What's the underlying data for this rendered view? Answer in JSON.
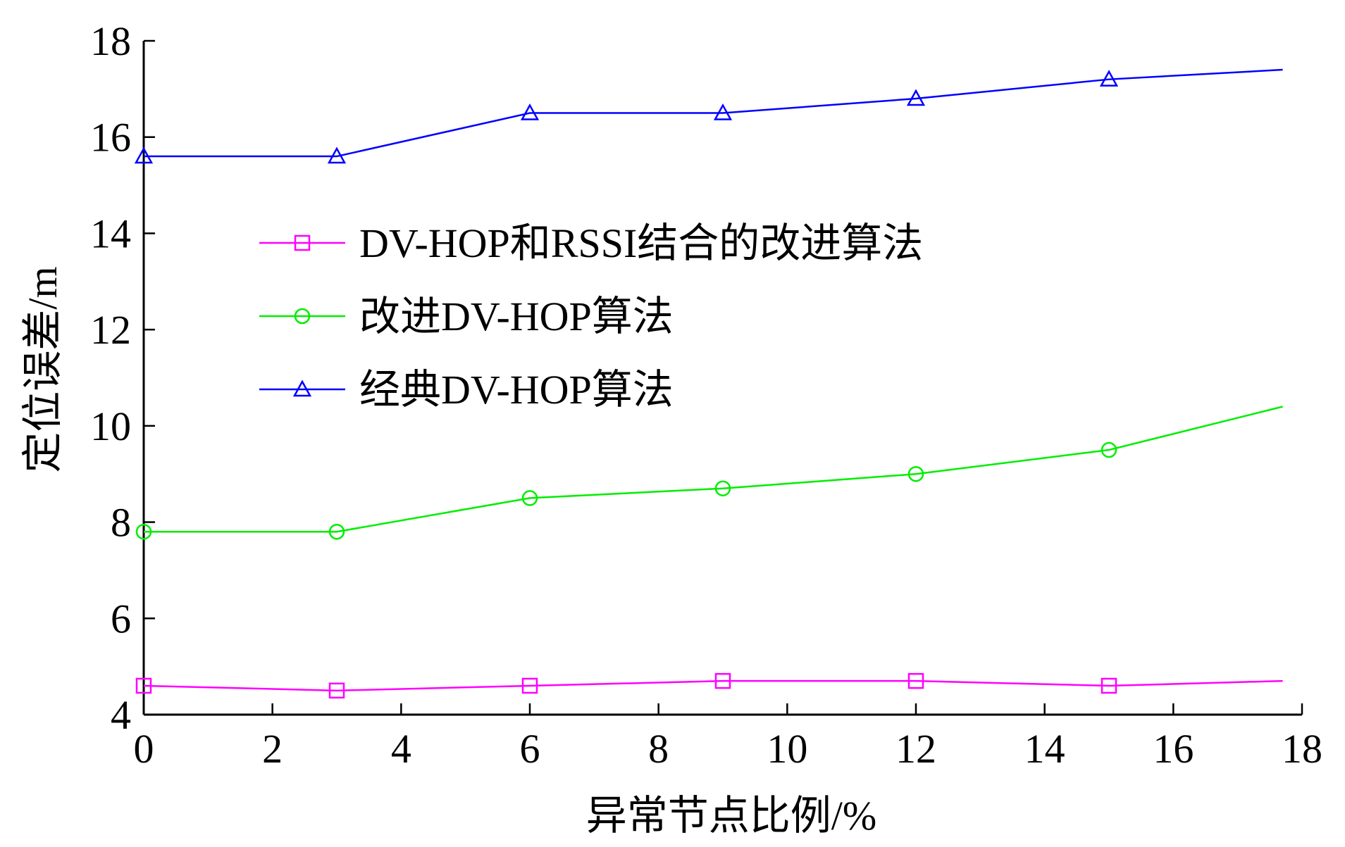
{
  "chart_data": {
    "type": "line",
    "title": "",
    "xlabel": "异常节点比例/%",
    "ylabel": "定位误差/m",
    "xlim": [
      0,
      18
    ],
    "ylim": [
      4,
      18
    ],
    "xticks": [
      0,
      2,
      4,
      6,
      8,
      10,
      12,
      14,
      16,
      18
    ],
    "yticks": [
      4,
      6,
      8,
      10,
      12,
      14,
      16,
      18
    ],
    "x_tick_labels": [
      "0",
      "2",
      "4",
      "6",
      "8",
      "10",
      "12",
      "14",
      "16",
      "18"
    ],
    "y_tick_labels": [
      "4",
      "6",
      "8",
      "10",
      "12",
      "14",
      "16",
      "18"
    ],
    "grid": false,
    "legend_position": "center-left",
    "series": [
      {
        "name": "DV-HOP和RSSI结合的改进算法",
        "color": "#ff00ff",
        "marker": "square",
        "x": [
          0,
          3,
          6,
          9,
          12,
          15,
          17.7
        ],
        "y": [
          4.6,
          4.5,
          4.6,
          4.7,
          4.7,
          4.6,
          4.7
        ],
        "marker_count": 6
      },
      {
        "name": "改进DV-HOP算法",
        "color": "#00ee00",
        "marker": "circle",
        "x": [
          0,
          3,
          6,
          9,
          12,
          15,
          17.7
        ],
        "y": [
          7.8,
          7.8,
          8.5,
          8.7,
          9.0,
          9.5,
          10.4
        ],
        "marker_count": 6
      },
      {
        "name": "经典DV-HOP算法",
        "color": "#0000ff",
        "marker": "triangle",
        "x": [
          0,
          3,
          6,
          9,
          12,
          15,
          17.7
        ],
        "y": [
          15.6,
          15.6,
          16.5,
          16.5,
          16.8,
          17.2,
          17.4
        ],
        "marker_count": 6
      }
    ]
  }
}
